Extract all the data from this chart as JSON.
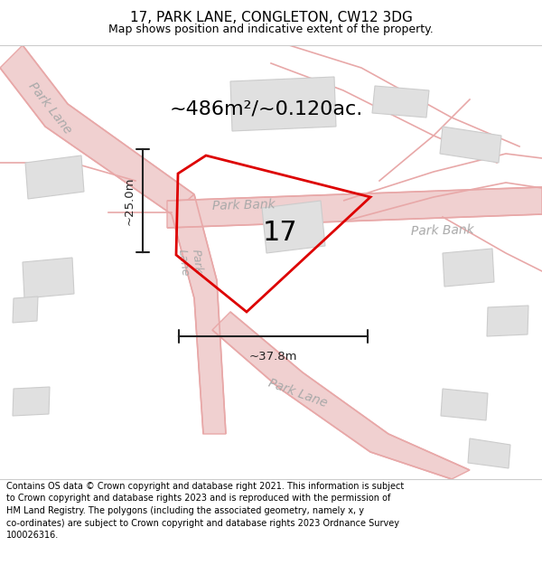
{
  "title": "17, PARK LANE, CONGLETON, CW12 3DG",
  "subtitle": "Map shows position and indicative extent of the property.",
  "area_text": "~486m²/~0.120ac.",
  "dim_width": "~37.8m",
  "dim_height": "~25.0m",
  "plot_number": "17",
  "footer": "Contains OS data © Crown copyright and database right 2021. This information is subject to Crown copyright and database rights 2023 and is reproduced with the permission of HM Land Registry. The polygons (including the associated geometry, namely x, y co-ordinates) are subject to Crown copyright and database rights 2023 Ordnance Survey 100026316.",
  "bg_color": "#ffffff",
  "map_bg": "#ffffff",
  "road_line_color": "#e8a8a8",
  "road_fill_color": "#f0d0d0",
  "building_fill": "#e0e0e0",
  "building_edge": "#cccccc",
  "plot_edge_color": "#dd0000",
  "road_label_color": "#aaaaaa",
  "dim_color": "#222222",
  "separator_color": "#cccccc",
  "title_fontsize": 11,
  "subtitle_fontsize": 9,
  "area_fontsize": 16,
  "plot_label_fontsize": 22,
  "footer_fontsize": 7.0,
  "road_label_fontsize": 10
}
